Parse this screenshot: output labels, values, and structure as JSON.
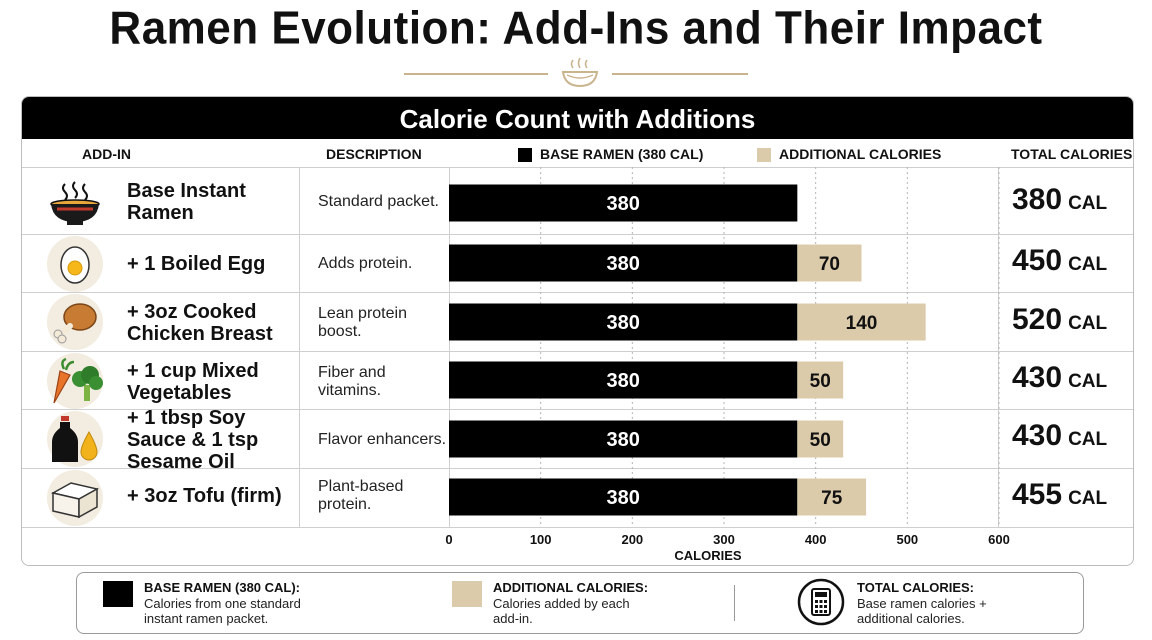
{
  "title": "Ramen Evolution: Add-Ins and Their Impact",
  "panel_title": "Calorie Count with Additions",
  "headers": {
    "addin": "ADD-IN",
    "description": "DESCRIPTION",
    "total": "TOTAL CALORIES"
  },
  "colors": {
    "base": "#000000",
    "additional": "#dccbab",
    "accent": "#c9b48e"
  },
  "rows": [
    {
      "icon": "ramen-bowl-icon",
      "label": "Base Instant Ramen",
      "description": "Standard packet.",
      "total": "380",
      "unit": "CAL"
    },
    {
      "icon": "boiled-egg-icon",
      "label": "+ 1 Boiled Egg",
      "description": "Adds protein.",
      "total": "450",
      "unit": "CAL"
    },
    {
      "icon": "chicken-drumstick-icon",
      "label": "+ 3oz Cooked Chicken Breast",
      "description": "Lean protein boost.",
      "total": "520",
      "unit": "CAL"
    },
    {
      "icon": "vegetables-icon",
      "label": "+ 1 cup Mixed Vegetables",
      "description": "Fiber and vitamins.",
      "total": "430",
      "unit": "CAL"
    },
    {
      "icon": "soy-sauce-oil-icon",
      "label": "+ 1 tbsp Soy Sauce & 1 tsp Sesame Oil",
      "description": "Flavor enhancers.",
      "total": "430",
      "unit": "CAL"
    },
    {
      "icon": "tofu-icon",
      "label": "+ 3oz Tofu (firm)",
      "description": "Plant-based protein.",
      "total": "455",
      "unit": "CAL"
    }
  ],
  "chart_data": {
    "type": "bar",
    "orientation": "horizontal",
    "stacked": true,
    "categories": [
      "Base Instant Ramen",
      "+ 1 Boiled Egg",
      "+ 3oz Cooked Chicken Breast",
      "+ 1 cup Mixed Vegetables",
      "+ 1 tbsp Soy Sauce & 1 tsp Sesame Oil",
      "+ 3oz Tofu (firm)"
    ],
    "series": [
      {
        "name": "BASE RAMEN (380 CAL)",
        "values": [
          380,
          380,
          380,
          380,
          380,
          380
        ],
        "color": "#000000"
      },
      {
        "name": "ADDITIONAL CALORIES",
        "values": [
          0,
          70,
          140,
          50,
          50,
          75
        ],
        "color": "#dccbab"
      }
    ],
    "xlabel": "CALORIES",
    "xlim": [
      0,
      600
    ],
    "xticks": [
      0,
      100,
      200,
      300,
      400,
      500,
      600
    ],
    "grid": true,
    "legend": "top"
  },
  "legend": {
    "base": {
      "title": "BASE RAMEN (380 CAL):",
      "text": "Calories from one standard instant ramen packet."
    },
    "additional": {
      "title": "ADDITIONAL CALORIES:",
      "text": "Calories added by each add-in."
    },
    "total": {
      "title": "TOTAL CALORIES:",
      "text": "Base ramen calories + additional calories.",
      "icon": "calculator-icon"
    }
  }
}
